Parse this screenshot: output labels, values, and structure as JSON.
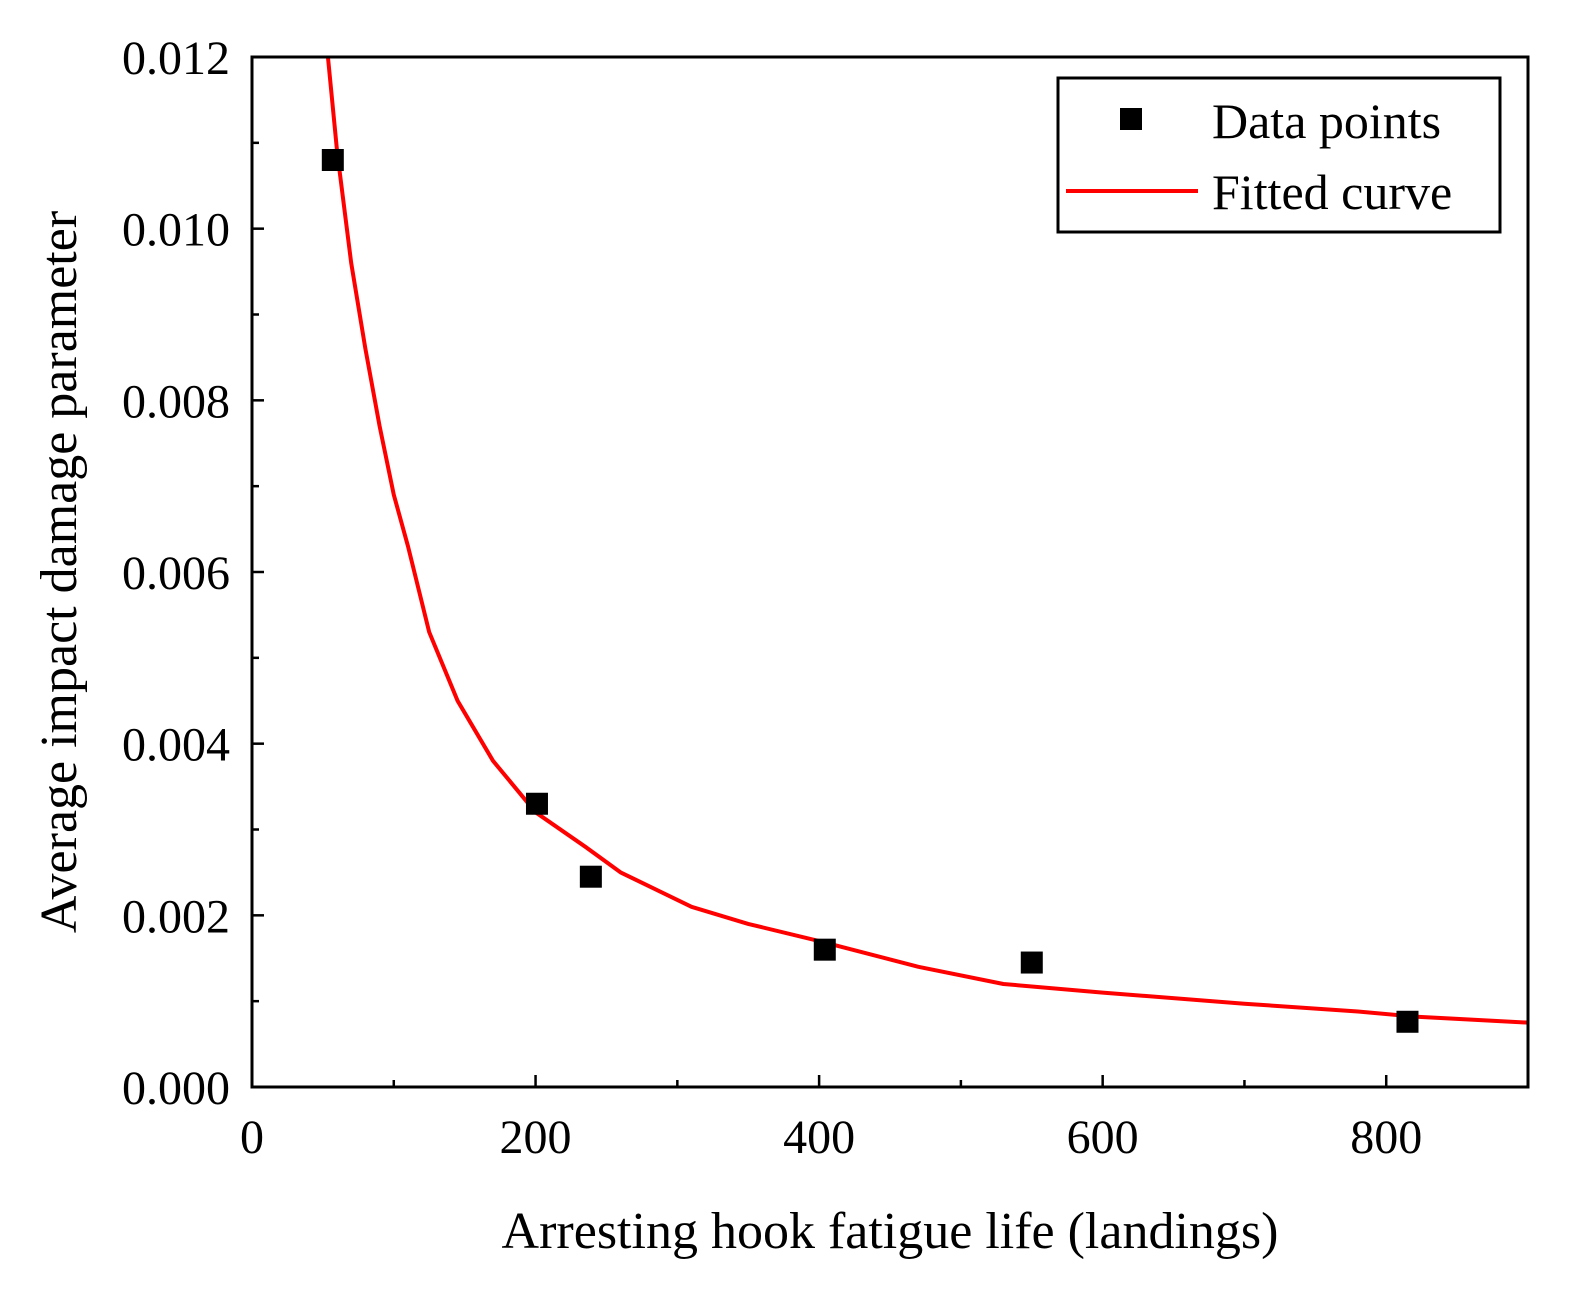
{
  "chart_data": {
    "type": "scatter",
    "xlabel": "Arresting hook fatigue life (landings)",
    "ylabel": "Average impact damage parameter",
    "xlim": [
      0,
      900
    ],
    "ylim": [
      0,
      0.012
    ],
    "x_ticks": [
      0,
      200,
      400,
      600,
      800
    ],
    "x_tick_labels": [
      "0",
      "200",
      "400",
      "600",
      "800"
    ],
    "y_ticks": [
      0,
      0.002,
      0.004,
      0.006,
      0.008,
      0.01,
      0.012
    ],
    "y_tick_labels": [
      "0.000",
      "0.002",
      "0.004",
      "0.006",
      "0.008",
      "0.010",
      "0.012"
    ],
    "grid": false,
    "legend_position": "top-right",
    "series": [
      {
        "name": "Data points",
        "type": "scatter",
        "marker": "square",
        "color": "#000000",
        "x": [
          57,
          201,
          239,
          404,
          550,
          815
        ],
        "y": [
          0.0108,
          0.0033,
          0.00245,
          0.0016,
          0.00145,
          0.00076
        ]
      },
      {
        "name": "Fitted curve",
        "type": "line",
        "color": "#ff0000",
        "x": [
          53,
          60,
          70,
          80,
          90,
          100,
          110,
          125,
          145,
          170,
          200,
          235,
          260,
          310,
          350,
          400,
          470,
          530,
          600,
          700,
          780,
          820,
          900
        ],
        "y": [
          0.0121,
          0.0109,
          0.0096,
          0.0086,
          0.0077,
          0.0069,
          0.0063,
          0.0053,
          0.0045,
          0.0038,
          0.0032,
          0.0028,
          0.0025,
          0.0021,
          0.0019,
          0.0017,
          0.0014,
          0.0012,
          0.0011,
          0.00097,
          0.00088,
          0.00082,
          0.00075
        ]
      }
    ]
  }
}
